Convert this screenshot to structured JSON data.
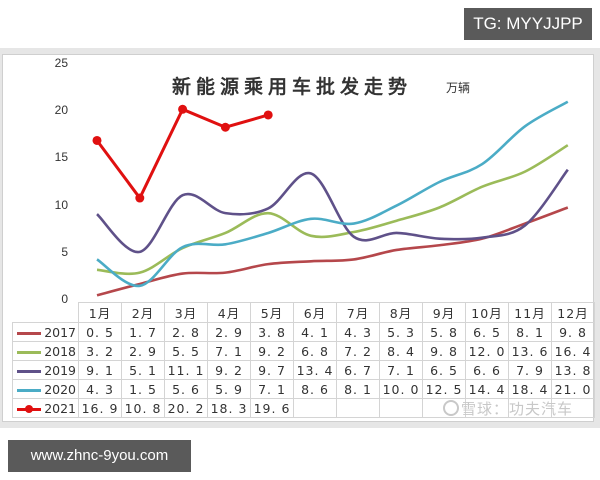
{
  "badges": {
    "tg": "TG: MYYJJPP",
    "site": "www.zhnc-9you.com"
  },
  "watermark": {
    "icon": "snowball-logo-icon",
    "text": "雪球：功夫汽车"
  },
  "chart_data": {
    "type": "line",
    "title": "新能源乘用车批发走势",
    "unit": "万辆",
    "xlabel": "",
    "ylabel": "万辆",
    "ylim": [
      0,
      25
    ],
    "y_ticks": [
      0,
      5,
      10,
      15,
      20,
      25
    ],
    "grid": false,
    "legend_position": "table-left",
    "categories": [
      "1月",
      "2月",
      "3月",
      "4月",
      "5月",
      "6月",
      "7月",
      "8月",
      "9月",
      "10月",
      "11月",
      "12月"
    ],
    "series": [
      {
        "name": "2017",
        "color": "#b5474b",
        "smooth": true,
        "marker": false,
        "values": [
          0.5,
          1.7,
          2.8,
          2.9,
          3.8,
          4.1,
          4.3,
          5.3,
          5.8,
          6.5,
          8.1,
          9.8
        ],
        "display": [
          "0.5",
          "1.7",
          "2.8",
          "2.9",
          "3.8",
          "4.1",
          "4.3",
          "5.3",
          "5.8",
          "6.5",
          "8.1",
          "9.8"
        ]
      },
      {
        "name": "2018",
        "color": "#9bbb59",
        "smooth": true,
        "marker": false,
        "values": [
          3.2,
          2.9,
          5.5,
          7.1,
          9.2,
          6.8,
          7.2,
          8.4,
          9.8,
          12.0,
          13.6,
          16.4
        ],
        "display": [
          "3.2",
          "2.9",
          "5.5",
          "7.1",
          "9.2",
          "6.8",
          "7.2",
          "8.4",
          "9.8",
          "12.0",
          "13.6",
          "16.4"
        ]
      },
      {
        "name": "2019",
        "color": "#5f5189",
        "smooth": true,
        "marker": false,
        "values": [
          9.1,
          5.1,
          11.1,
          9.2,
          9.7,
          13.4,
          6.7,
          7.1,
          6.5,
          6.6,
          7.9,
          13.8
        ],
        "display": [
          "9.1",
          "5.1",
          "11.1",
          "9.2",
          "9.7",
          "13.4",
          "6.7",
          "7.1",
          "6.5",
          "6.6",
          "7.9",
          "13.8"
        ]
      },
      {
        "name": "2020",
        "color": "#4bacc6",
        "smooth": true,
        "marker": false,
        "values": [
          4.3,
          1.5,
          5.6,
          5.9,
          7.1,
          8.6,
          8.1,
          10.0,
          12.5,
          14.4,
          18.4,
          21.0
        ],
        "display": [
          "4.3",
          "1.5",
          "5.6",
          "5.9",
          "7.1",
          "8.6",
          "8.1",
          "10.0",
          "12.5",
          "14.4",
          "18.4",
          "21.0"
        ]
      },
      {
        "name": "2021",
        "color": "#e01010",
        "smooth": false,
        "marker": true,
        "values": [
          16.9,
          10.8,
          20.2,
          18.3,
          19.6
        ],
        "display": [
          "16.9",
          "10.8",
          "20.2",
          "18.3",
          "19.6",
          "",
          "",
          "",
          "",
          "",
          "",
          ""
        ]
      }
    ]
  }
}
